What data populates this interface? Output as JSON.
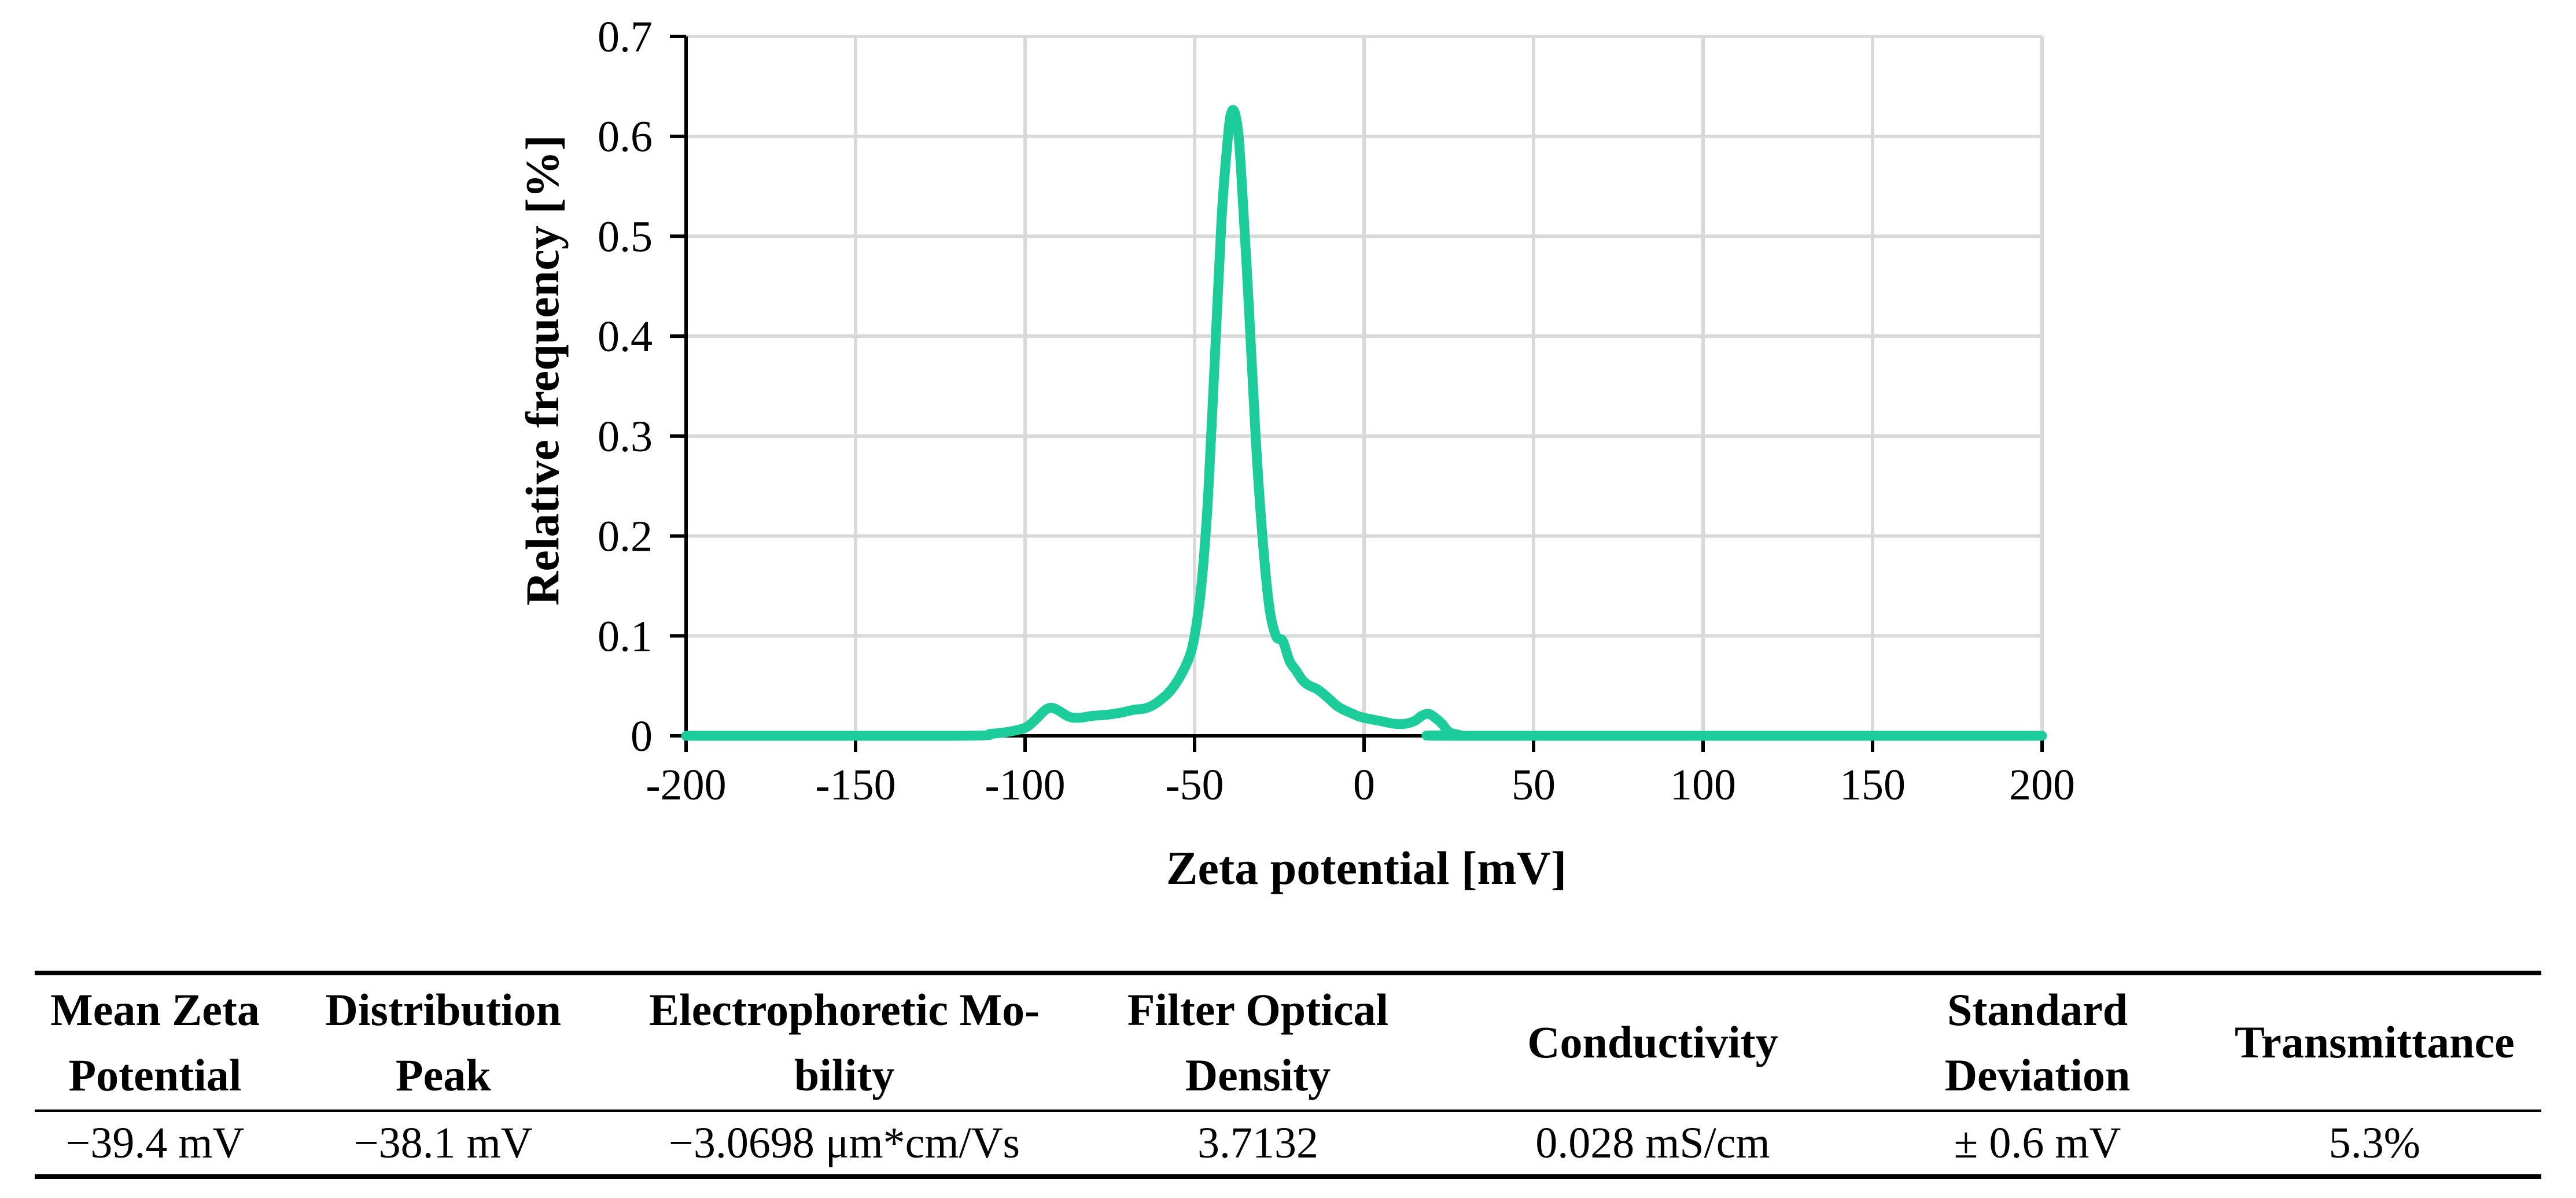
{
  "chart_data": {
    "type": "line",
    "title": "",
    "xlabel": "Zeta potential [mV]",
    "ylabel": "Relative frequency [%]",
    "xlim": [
      -200,
      200
    ],
    "ylim": [
      0,
      0.7
    ],
    "xticks": [
      -200,
      -150,
      -100,
      -50,
      0,
      50,
      100,
      150,
      200
    ],
    "yticks": [
      0,
      0.1,
      0.2,
      0.3,
      0.4,
      0.5,
      0.6,
      0.7
    ],
    "xtick_labels": [
      "-200",
      "-150",
      "-100",
      "-50",
      "0",
      "50",
      "100",
      "150",
      "200"
    ],
    "ytick_labels": [
      "0",
      "0.1",
      "0.2",
      "0.3",
      "0.4",
      "0.5",
      "0.6",
      "0.7"
    ],
    "grid": true,
    "series": [
      {
        "name": "Zeta potential distribution",
        "color": "#1ccc9a",
        "x": [
          -200,
          -120,
          -110,
          -105,
          -100,
          -97,
          -94,
          -92,
          -90,
          -87,
          -84,
          -80,
          -76,
          -72,
          -68,
          -64,
          -60,
          -56,
          -52,
          -50,
          -48,
          -46,
          -44,
          -42,
          -40,
          -39,
          -38,
          -37,
          -36,
          -34,
          -32,
          -30,
          -28,
          -26,
          -24,
          -22,
          -20,
          -18,
          -16,
          -14,
          -12,
          -10,
          -8,
          -6,
          -4,
          -2,
          0,
          3,
          6,
          9,
          12,
          15,
          17,
          19,
          21,
          23,
          25,
          28,
          32,
          200
        ],
        "y": [
          0,
          0,
          0.002,
          0.004,
          0.008,
          0.016,
          0.026,
          0.028,
          0.025,
          0.019,
          0.018,
          0.02,
          0.021,
          0.023,
          0.026,
          0.028,
          0.036,
          0.05,
          0.075,
          0.1,
          0.15,
          0.24,
          0.38,
          0.52,
          0.605,
          0.625,
          0.622,
          0.6,
          0.55,
          0.43,
          0.3,
          0.2,
          0.13,
          0.1,
          0.095,
          0.075,
          0.065,
          0.055,
          0.05,
          0.047,
          0.042,
          0.036,
          0.03,
          0.026,
          0.023,
          0.02,
          0.018,
          0.016,
          0.014,
          0.012,
          0.012,
          0.015,
          0.02,
          0.022,
          0.018,
          0.012,
          0.004,
          0.001,
          0,
          0
        ]
      }
    ]
  },
  "table": {
    "headers": [
      {
        "line1": "Mean Zeta",
        "line2": "Potential"
      },
      {
        "line1": "Distribution",
        "line2": "Peak"
      },
      {
        "line1": "Electrophoretic Mo-",
        "line2": "bility"
      },
      {
        "line1": "Filter Optical",
        "line2": "Density"
      },
      {
        "line1": "Conductivity",
        "line2": ""
      },
      {
        "line1": "Standard",
        "line2": "Deviation"
      },
      {
        "line1": "Transmittance",
        "line2": ""
      }
    ],
    "values": [
      "−39.4 mV",
      "−38.1 mV",
      "−3.0698 μm*cm/Vs",
      "3.7132",
      "0.028 mS/cm",
      "± 0.6 mV",
      "5.3%"
    ]
  }
}
